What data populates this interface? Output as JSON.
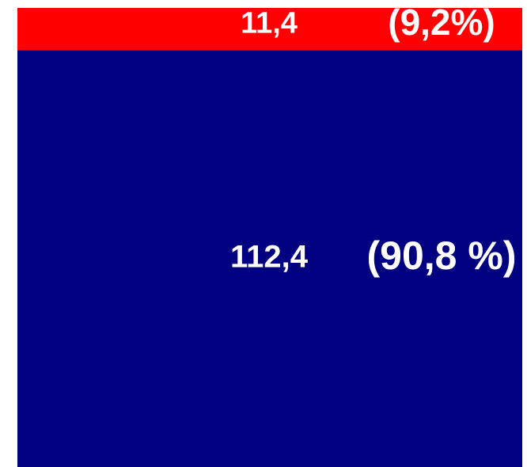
{
  "chart_data": {
    "type": "bar",
    "stacked": true,
    "categories": [
      null
    ],
    "series": [
      {
        "color": "#000080",
        "values": [
          112.4
        ],
        "value_labels": [
          "112,4"
        ],
        "shares": [
          90.8
        ],
        "share_labels": [
          "(90,8 %)"
        ]
      },
      {
        "color": "#ff0000",
        "values": [
          11.4
        ],
        "value_labels": [
          "11,4"
        ],
        "shares": [
          9.2
        ],
        "share_labels": [
          "(9,2%)"
        ]
      }
    ]
  }
}
